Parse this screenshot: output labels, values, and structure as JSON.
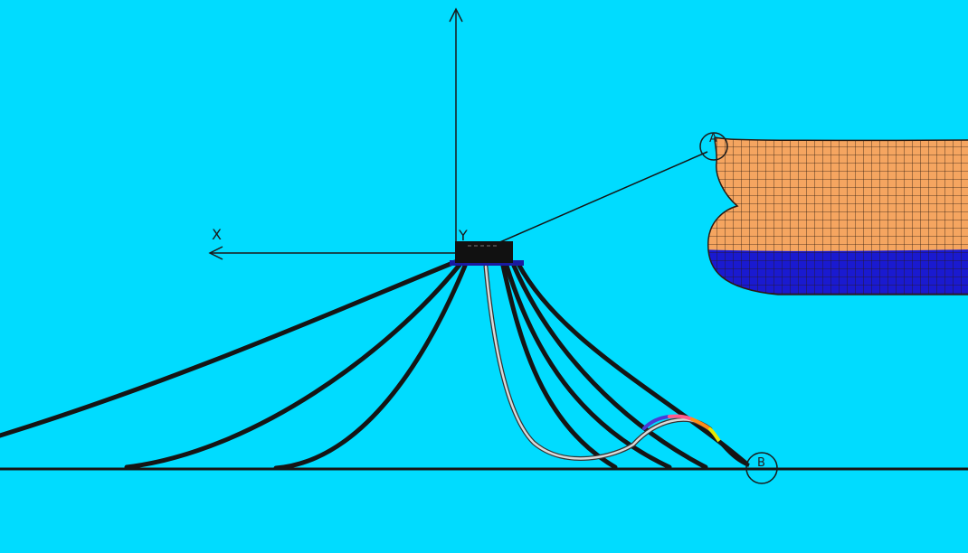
{
  "colors": {
    "background": "#00dcff",
    "mooring_line": "#151515",
    "hose_outer": "#333333",
    "hose_inner": "#d9d9d9",
    "ship_upper": "#f5a560",
    "ship_lower": "#1a1ad0",
    "mesh": "#2a1a10",
    "axis": "#1a1a1a"
  },
  "axes": {
    "x_label": "X",
    "y_label": "Y"
  },
  "markers": {
    "ship_connection": "A",
    "touchdown": "B"
  }
}
